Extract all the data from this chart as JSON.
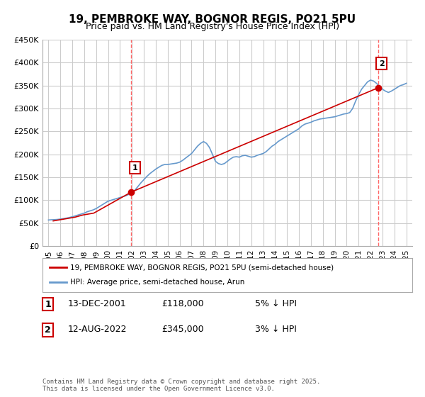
{
  "title": "19, PEMBROKE WAY, BOGNOR REGIS, PO21 5PU",
  "subtitle": "Price paid vs. HM Land Registry's House Price Index (HPI)",
  "title_fontsize": 11,
  "subtitle_fontsize": 9,
  "background_color": "#ffffff",
  "plot_bg_color": "#ffffff",
  "grid_color": "#cccccc",
  "ylim": [
    0,
    450000
  ],
  "ytick_values": [
    0,
    50000,
    100000,
    150000,
    200000,
    250000,
    300000,
    350000,
    400000,
    450000
  ],
  "ytick_labels": [
    "£0",
    "£50K",
    "£100K",
    "£150K",
    "£200K",
    "£250K",
    "£300K",
    "£350K",
    "£400K",
    "£450K"
  ],
  "xlim_start": 1994.5,
  "xlim_end": 2025.5,
  "xtick_years": [
    1995,
    1996,
    1997,
    1998,
    1999,
    2000,
    2001,
    2002,
    2003,
    2004,
    2005,
    2006,
    2007,
    2008,
    2009,
    2010,
    2011,
    2012,
    2013,
    2014,
    2015,
    2016,
    2017,
    2018,
    2019,
    2020,
    2021,
    2022,
    2023,
    2024,
    2025
  ],
  "hpi_color": "#6699cc",
  "price_color": "#cc0000",
  "vline_color": "#ff6666",
  "marker1_x": 2001.95,
  "marker1_y": 118000,
  "marker1_label": "1",
  "marker2_x": 2022.62,
  "marker2_y": 345000,
  "marker2_label": "2",
  "annotation_box_color": "#cc0000",
  "legend_label_price": "19, PEMBROKE WAY, BOGNOR REGIS, PO21 5PU (semi-detached house)",
  "legend_label_hpi": "HPI: Average price, semi-detached house, Arun",
  "table_rows": [
    {
      "num": "1",
      "date": "13-DEC-2001",
      "price": "£118,000",
      "note": "5% ↓ HPI"
    },
    {
      "num": "2",
      "date": "12-AUG-2022",
      "price": "£345,000",
      "note": "3% ↓ HPI"
    }
  ],
  "footer_text": "Contains HM Land Registry data © Crown copyright and database right 2025.\nThis data is licensed under the Open Government Licence v3.0.",
  "hpi_data_x": [
    1995.0,
    1995.25,
    1995.5,
    1995.75,
    1996.0,
    1996.25,
    1996.5,
    1996.75,
    1997.0,
    1997.25,
    1997.5,
    1997.75,
    1998.0,
    1998.25,
    1998.5,
    1998.75,
    1999.0,
    1999.25,
    1999.5,
    1999.75,
    2000.0,
    2000.25,
    2000.5,
    2000.75,
    2001.0,
    2001.25,
    2001.5,
    2001.75,
    2002.0,
    2002.25,
    2002.5,
    2002.75,
    2003.0,
    2003.25,
    2003.5,
    2003.75,
    2004.0,
    2004.25,
    2004.5,
    2004.75,
    2005.0,
    2005.25,
    2005.5,
    2005.75,
    2006.0,
    2006.25,
    2006.5,
    2006.75,
    2007.0,
    2007.25,
    2007.5,
    2007.75,
    2008.0,
    2008.25,
    2008.5,
    2008.75,
    2009.0,
    2009.25,
    2009.5,
    2009.75,
    2010.0,
    2010.25,
    2010.5,
    2010.75,
    2011.0,
    2011.25,
    2011.5,
    2011.75,
    2012.0,
    2012.25,
    2012.5,
    2012.75,
    2013.0,
    2013.25,
    2013.5,
    2013.75,
    2014.0,
    2014.25,
    2014.5,
    2014.75,
    2015.0,
    2015.25,
    2015.5,
    2015.75,
    2016.0,
    2016.25,
    2016.5,
    2016.75,
    2017.0,
    2017.25,
    2017.5,
    2017.75,
    2018.0,
    2018.25,
    2018.5,
    2018.75,
    2019.0,
    2019.25,
    2019.5,
    2019.75,
    2020.0,
    2020.25,
    2020.5,
    2020.75,
    2021.0,
    2021.25,
    2021.5,
    2021.75,
    2022.0,
    2022.25,
    2022.5,
    2022.75,
    2023.0,
    2023.25,
    2023.5,
    2023.75,
    2024.0,
    2024.25,
    2024.5,
    2024.75,
    2025.0
  ],
  "hpi_data_y": [
    57000,
    57500,
    57800,
    58200,
    59000,
    60000,
    61000,
    62500,
    64000,
    66000,
    68000,
    70000,
    72000,
    75000,
    77000,
    79000,
    82000,
    86000,
    90000,
    94000,
    98000,
    100000,
    102000,
    104000,
    106000,
    108000,
    110000,
    113000,
    116000,
    122000,
    130000,
    138000,
    145000,
    152000,
    158000,
    163000,
    168000,
    172000,
    176000,
    178000,
    178000,
    179000,
    180000,
    181000,
    183000,
    187000,
    192000,
    197000,
    202000,
    210000,
    218000,
    224000,
    228000,
    224000,
    215000,
    200000,
    185000,
    180000,
    178000,
    180000,
    185000,
    190000,
    194000,
    195000,
    194000,
    197000,
    198000,
    196000,
    194000,
    195000,
    198000,
    200000,
    202000,
    206000,
    212000,
    218000,
    222000,
    228000,
    232000,
    236000,
    240000,
    244000,
    248000,
    252000,
    256000,
    262000,
    266000,
    268000,
    270000,
    273000,
    275000,
    277000,
    278000,
    279000,
    280000,
    281000,
    282000,
    284000,
    286000,
    288000,
    289000,
    291000,
    300000,
    316000,
    330000,
    342000,
    350000,
    358000,
    362000,
    360000,
    355000,
    348000,
    342000,
    338000,
    335000,
    338000,
    342000,
    346000,
    350000,
    352000,
    355000
  ],
  "price_data_x": [
    1995.4,
    1997.2,
    1997.9,
    1998.8,
    2001.95,
    2022.62
  ],
  "price_data_y": [
    55000,
    63000,
    68000,
    72000,
    118000,
    345000
  ]
}
